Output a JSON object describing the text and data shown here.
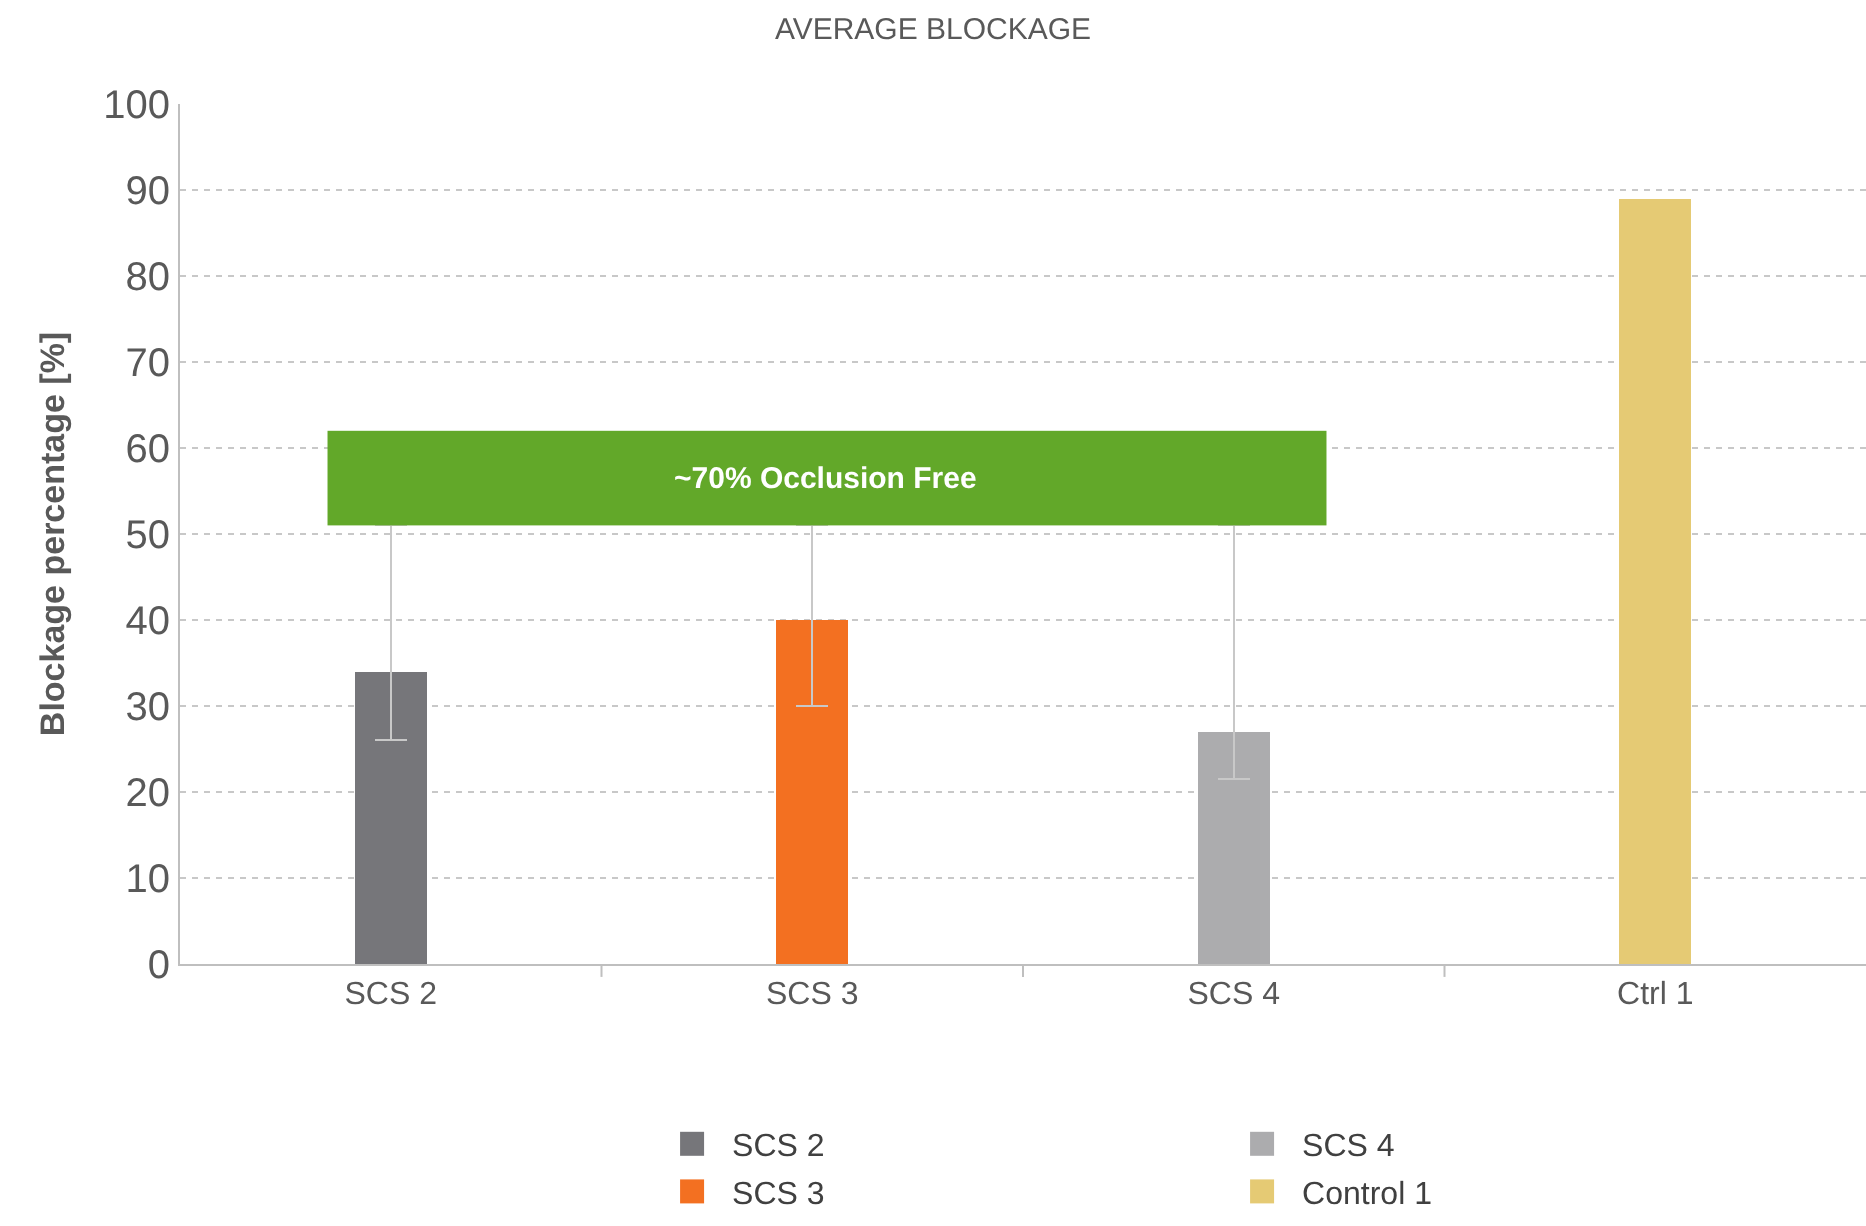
{
  "chart_data": {
    "type": "bar",
    "title": "AVERAGE BLOCKAGE",
    "ylabel": "Blockage percentage [%]",
    "categories": [
      "SCS 2",
      "SCS 3",
      "SCS 4",
      "Ctrl 1"
    ],
    "series": [
      {
        "name": "SCS 2",
        "color": "#76767a",
        "values": [
          34,
          null,
          null,
          null
        ],
        "errors": [
          [
            26,
            51
          ],
          null,
          null,
          null
        ]
      },
      {
        "name": "SCS 4",
        "color": "#acacae",
        "values": [
          null,
          null,
          27,
          null
        ],
        "errors": [
          null,
          null,
          [
            21.5,
            51
          ],
          null
        ]
      },
      {
        "name": "SCS 3",
        "color": "#f37021",
        "values": [
          null,
          40,
          null,
          null
        ],
        "errors": [
          null,
          [
            30,
            51
          ],
          null,
          null
        ]
      },
      {
        "name": "Control 1",
        "color": "#e5ca74",
        "values": [
          null,
          null,
          null,
          89
        ]
      }
    ],
    "ylim": [
      0,
      100
    ],
    "yticks": [
      0,
      10,
      20,
      30,
      40,
      50,
      60,
      70,
      80,
      90,
      100
    ],
    "grid": "y",
    "legend": "bottom",
    "annotations": [
      "~70% Occlusion Free"
    ]
  }
}
